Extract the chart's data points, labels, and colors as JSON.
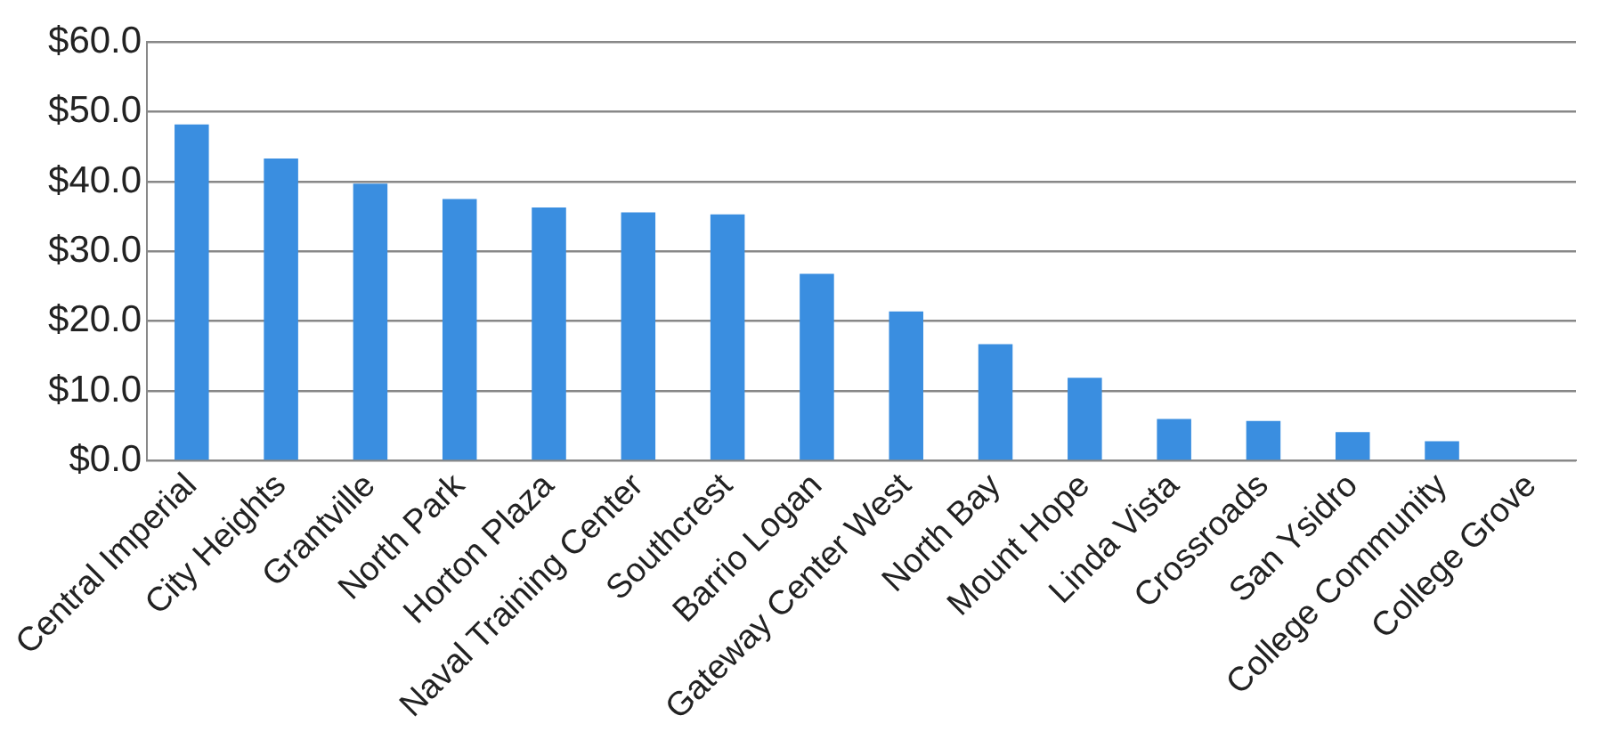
{
  "chart_data": {
    "type": "bar",
    "categories": [
      "Central Imperial",
      "City Heights",
      "Grantville",
      "North Park",
      "Horton Plaza",
      "Naval Training Center",
      "Southcrest",
      "Barrio Logan",
      "Gateway Center West",
      "North Bay",
      "Mount Hope",
      "Linda Vista",
      "Crossroads",
      "San Ysidro",
      "College Community",
      "College Grove"
    ],
    "values": [
      48.2,
      43.3,
      39.7,
      37.5,
      36.3,
      35.6,
      35.3,
      26.8,
      21.4,
      16.7,
      11.9,
      6.0,
      5.7,
      4.1,
      2.8,
      0
    ],
    "color": "#3a8ee0",
    "ylim": [
      0,
      60
    ],
    "yticks": [
      {
        "value": 0,
        "label": "$0.0"
      },
      {
        "value": 10,
        "label": "$10.0"
      },
      {
        "value": 20,
        "label": "$20.0"
      },
      {
        "value": 30,
        "label": "$30.0"
      },
      {
        "value": 40,
        "label": "$40.0"
      },
      {
        "value": 50,
        "label": "$50.0"
      },
      {
        "value": 60,
        "label": "$60.0"
      }
    ],
    "grid": "y",
    "legend": false
  }
}
